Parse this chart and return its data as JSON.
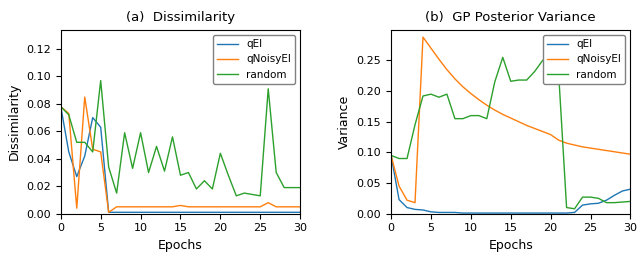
{
  "title_left": "(a)  Dissimilarity",
  "title_right": "(b)  GP Posterior Variance",
  "xlabel": "Epochs",
  "ylabel_left": "Dissimilarity",
  "ylabel_right": "Variance",
  "epochs": [
    0,
    1,
    2,
    3,
    4,
    5,
    6,
    7,
    8,
    9,
    10,
    11,
    12,
    13,
    14,
    15,
    16,
    17,
    18,
    19,
    20,
    21,
    22,
    23,
    24,
    25,
    26,
    27,
    28,
    29,
    30
  ],
  "dissim_qEI": [
    0.078,
    0.045,
    0.027,
    0.042,
    0.07,
    0.063,
    0.001,
    0.001,
    0.001,
    0.001,
    0.001,
    0.001,
    0.001,
    0.001,
    0.001,
    0.001,
    0.001,
    0.001,
    0.001,
    0.001,
    0.001,
    0.001,
    0.001,
    0.001,
    0.001,
    0.001,
    0.001,
    0.001,
    0.001,
    0.001,
    0.001
  ],
  "dissim_qNoisyEI": [
    0.078,
    0.073,
    0.004,
    0.085,
    0.047,
    0.045,
    0.001,
    0.005,
    0.005,
    0.005,
    0.005,
    0.005,
    0.005,
    0.005,
    0.005,
    0.006,
    0.005,
    0.005,
    0.005,
    0.005,
    0.005,
    0.005,
    0.005,
    0.005,
    0.005,
    0.005,
    0.008,
    0.005,
    0.005,
    0.005,
    0.005
  ],
  "dissim_random": [
    0.078,
    0.072,
    0.052,
    0.052,
    0.045,
    0.097,
    0.034,
    0.015,
    0.059,
    0.033,
    0.059,
    0.03,
    0.049,
    0.031,
    0.056,
    0.028,
    0.03,
    0.018,
    0.024,
    0.018,
    0.044,
    0.028,
    0.013,
    0.015,
    0.014,
    0.013,
    0.091,
    0.03,
    0.019,
    0.019,
    0.019
  ],
  "var_qEI": [
    0.095,
    0.023,
    0.01,
    0.007,
    0.006,
    0.003,
    0.002,
    0.002,
    0.002,
    0.001,
    0.001,
    0.001,
    0.001,
    0.001,
    0.001,
    0.001,
    0.001,
    0.001,
    0.001,
    0.001,
    0.001,
    0.001,
    0.001,
    0.002,
    0.014,
    0.016,
    0.017,
    0.022,
    0.03,
    0.037,
    0.04
  ],
  "var_qNoisyEI": [
    0.095,
    0.045,
    0.022,
    0.018,
    0.288,
    0.27,
    0.252,
    0.235,
    0.22,
    0.207,
    0.196,
    0.186,
    0.177,
    0.169,
    0.162,
    0.156,
    0.15,
    0.144,
    0.139,
    0.134,
    0.129,
    0.12,
    0.115,
    0.112,
    0.109,
    0.107,
    0.105,
    0.103,
    0.101,
    0.099,
    0.097
  ],
  "var_random": [
    0.095,
    0.09,
    0.09,
    0.145,
    0.192,
    0.195,
    0.19,
    0.195,
    0.155,
    0.155,
    0.16,
    0.16,
    0.155,
    0.215,
    0.255,
    0.216,
    0.218,
    0.218,
    0.232,
    0.25,
    0.26,
    0.23,
    0.01,
    0.008,
    0.027,
    0.027,
    0.025,
    0.018,
    0.018,
    0.019,
    0.02
  ],
  "color_qEI": "#1f77b4",
  "color_qNoisyEI": "#ff7f0e",
  "color_random": "#2ca02c",
  "dissim_ylim": [
    0,
    0.134
  ],
  "var_ylim": [
    0,
    0.3
  ],
  "dissim_yticks": [
    0.0,
    0.02,
    0.04,
    0.06,
    0.08,
    0.1,
    0.12
  ],
  "var_yticks": [
    0.0,
    0.05,
    0.1,
    0.15,
    0.2,
    0.25
  ],
  "xlim": [
    0,
    30
  ],
  "xticks": [
    0,
    5,
    10,
    15,
    20,
    25,
    30
  ]
}
